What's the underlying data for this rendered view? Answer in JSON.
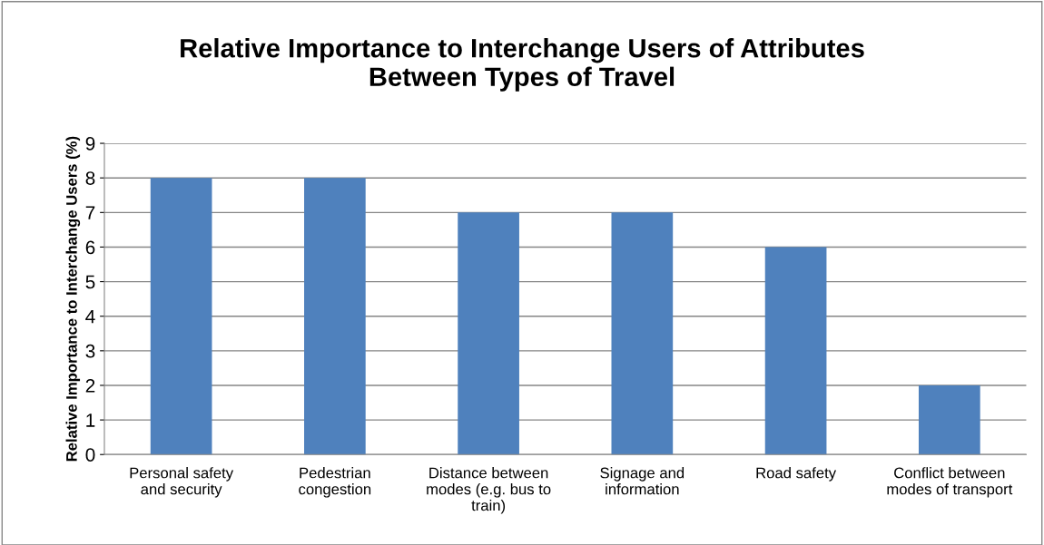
{
  "chart_data": {
    "type": "bar",
    "title": "Relative Importance to Interchange Users of Attributes\nBetween Types of Travel",
    "ylabel": "Relative Importance to Interchange Users (%)",
    "categories": [
      "Personal safety\nand security",
      "Pedestrian\ncongestion",
      "Distance between\nmodes (e.g. bus to\ntrain)",
      "Signage and\ninformation",
      "Road safety",
      "Conflict between\nmodes of transport"
    ],
    "values": [
      8,
      8,
      7,
      7,
      6,
      2
    ],
    "color": "#4f81bd",
    "ylim": [
      0,
      9
    ],
    "yticks": [
      0,
      1,
      2,
      3,
      4,
      5,
      6,
      7,
      8,
      9
    ],
    "grid": "y",
    "legend": false
  }
}
